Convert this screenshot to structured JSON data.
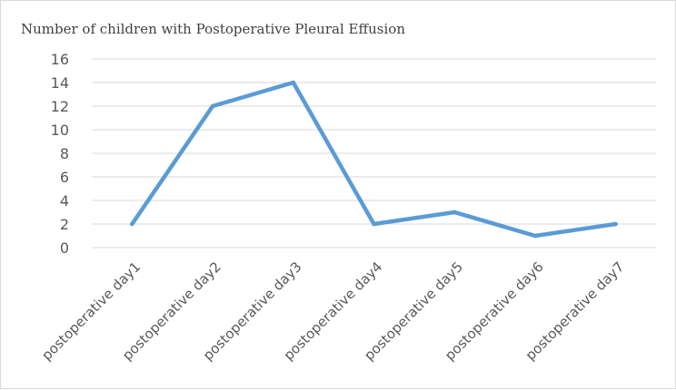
{
  "chart_data": {
    "type": "line",
    "title": "Number of children with Postoperative Pleural Effusion",
    "categories": [
      "postoperative day1",
      "postoperative day2",
      "postoperative day3",
      "postoperative day4",
      "postoperative day5",
      "postoperative day6",
      "postoperative day7"
    ],
    "series": [
      {
        "name": "Number of children with Postoperative Pleural Effusion",
        "values": [
          2,
          12,
          14,
          2,
          3,
          1,
          2
        ],
        "color": "#5b9bd5"
      }
    ],
    "xlabel": "",
    "ylabel": "",
    "ylim": [
      0,
      16
    ],
    "yticks": [
      0,
      2,
      4,
      6,
      8,
      10,
      12,
      14,
      16
    ],
    "grid": true,
    "legend": "none"
  }
}
